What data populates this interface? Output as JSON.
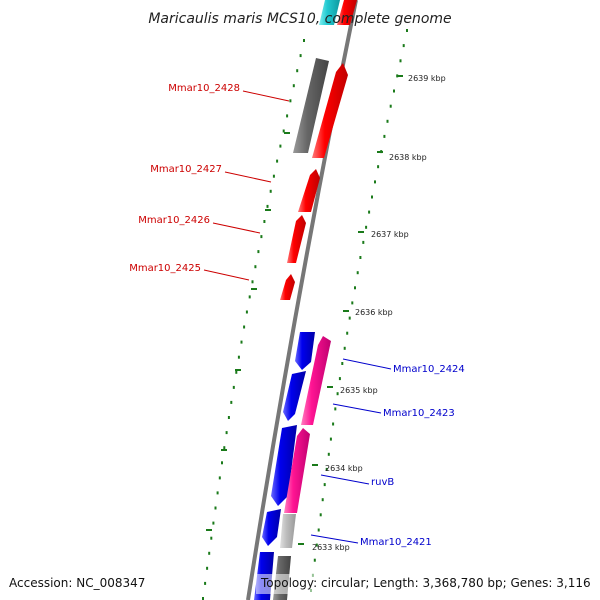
{
  "map": {
    "title": "Maricaulis maris MCS10, complete genome",
    "accession": "Accession: NC_008347",
    "topology": "Topology: circular; Length: 3,368,780 bp; Genes: 3,116"
  },
  "colors": {
    "forward_gene": "#ff0000",
    "reverse_gene": "#0000ee",
    "pink_gene": "#ff1493",
    "gray_gene": "#666666",
    "light_gray_gene": "#bdbdbd",
    "cyan_gene": "#20c8d0",
    "backbone": "#777777",
    "tick": "#1a7a1a",
    "label_red": "#cc0000",
    "label_blue": "#0000cc"
  },
  "tick_labels": [
    "2639 kbp",
    "2638 kbp",
    "2637 kbp",
    "2636 kbp",
    "2635 kbp",
    "2634 kbp",
    "2633 kbp"
  ],
  "gene_labels": [
    {
      "text": "Mmar10_2428",
      "strand": "forward"
    },
    {
      "text": "Mmar10_2427",
      "strand": "forward"
    },
    {
      "text": "Mmar10_2426",
      "strand": "forward"
    },
    {
      "text": "Mmar10_2425",
      "strand": "forward"
    },
    {
      "text": "Mmar10_2424",
      "strand": "reverse"
    },
    {
      "text": "Mmar10_2423",
      "strand": "reverse"
    },
    {
      "text": "ruvB",
      "strand": "reverse"
    },
    {
      "text": "Mmar10_2421",
      "strand": "reverse"
    }
  ]
}
